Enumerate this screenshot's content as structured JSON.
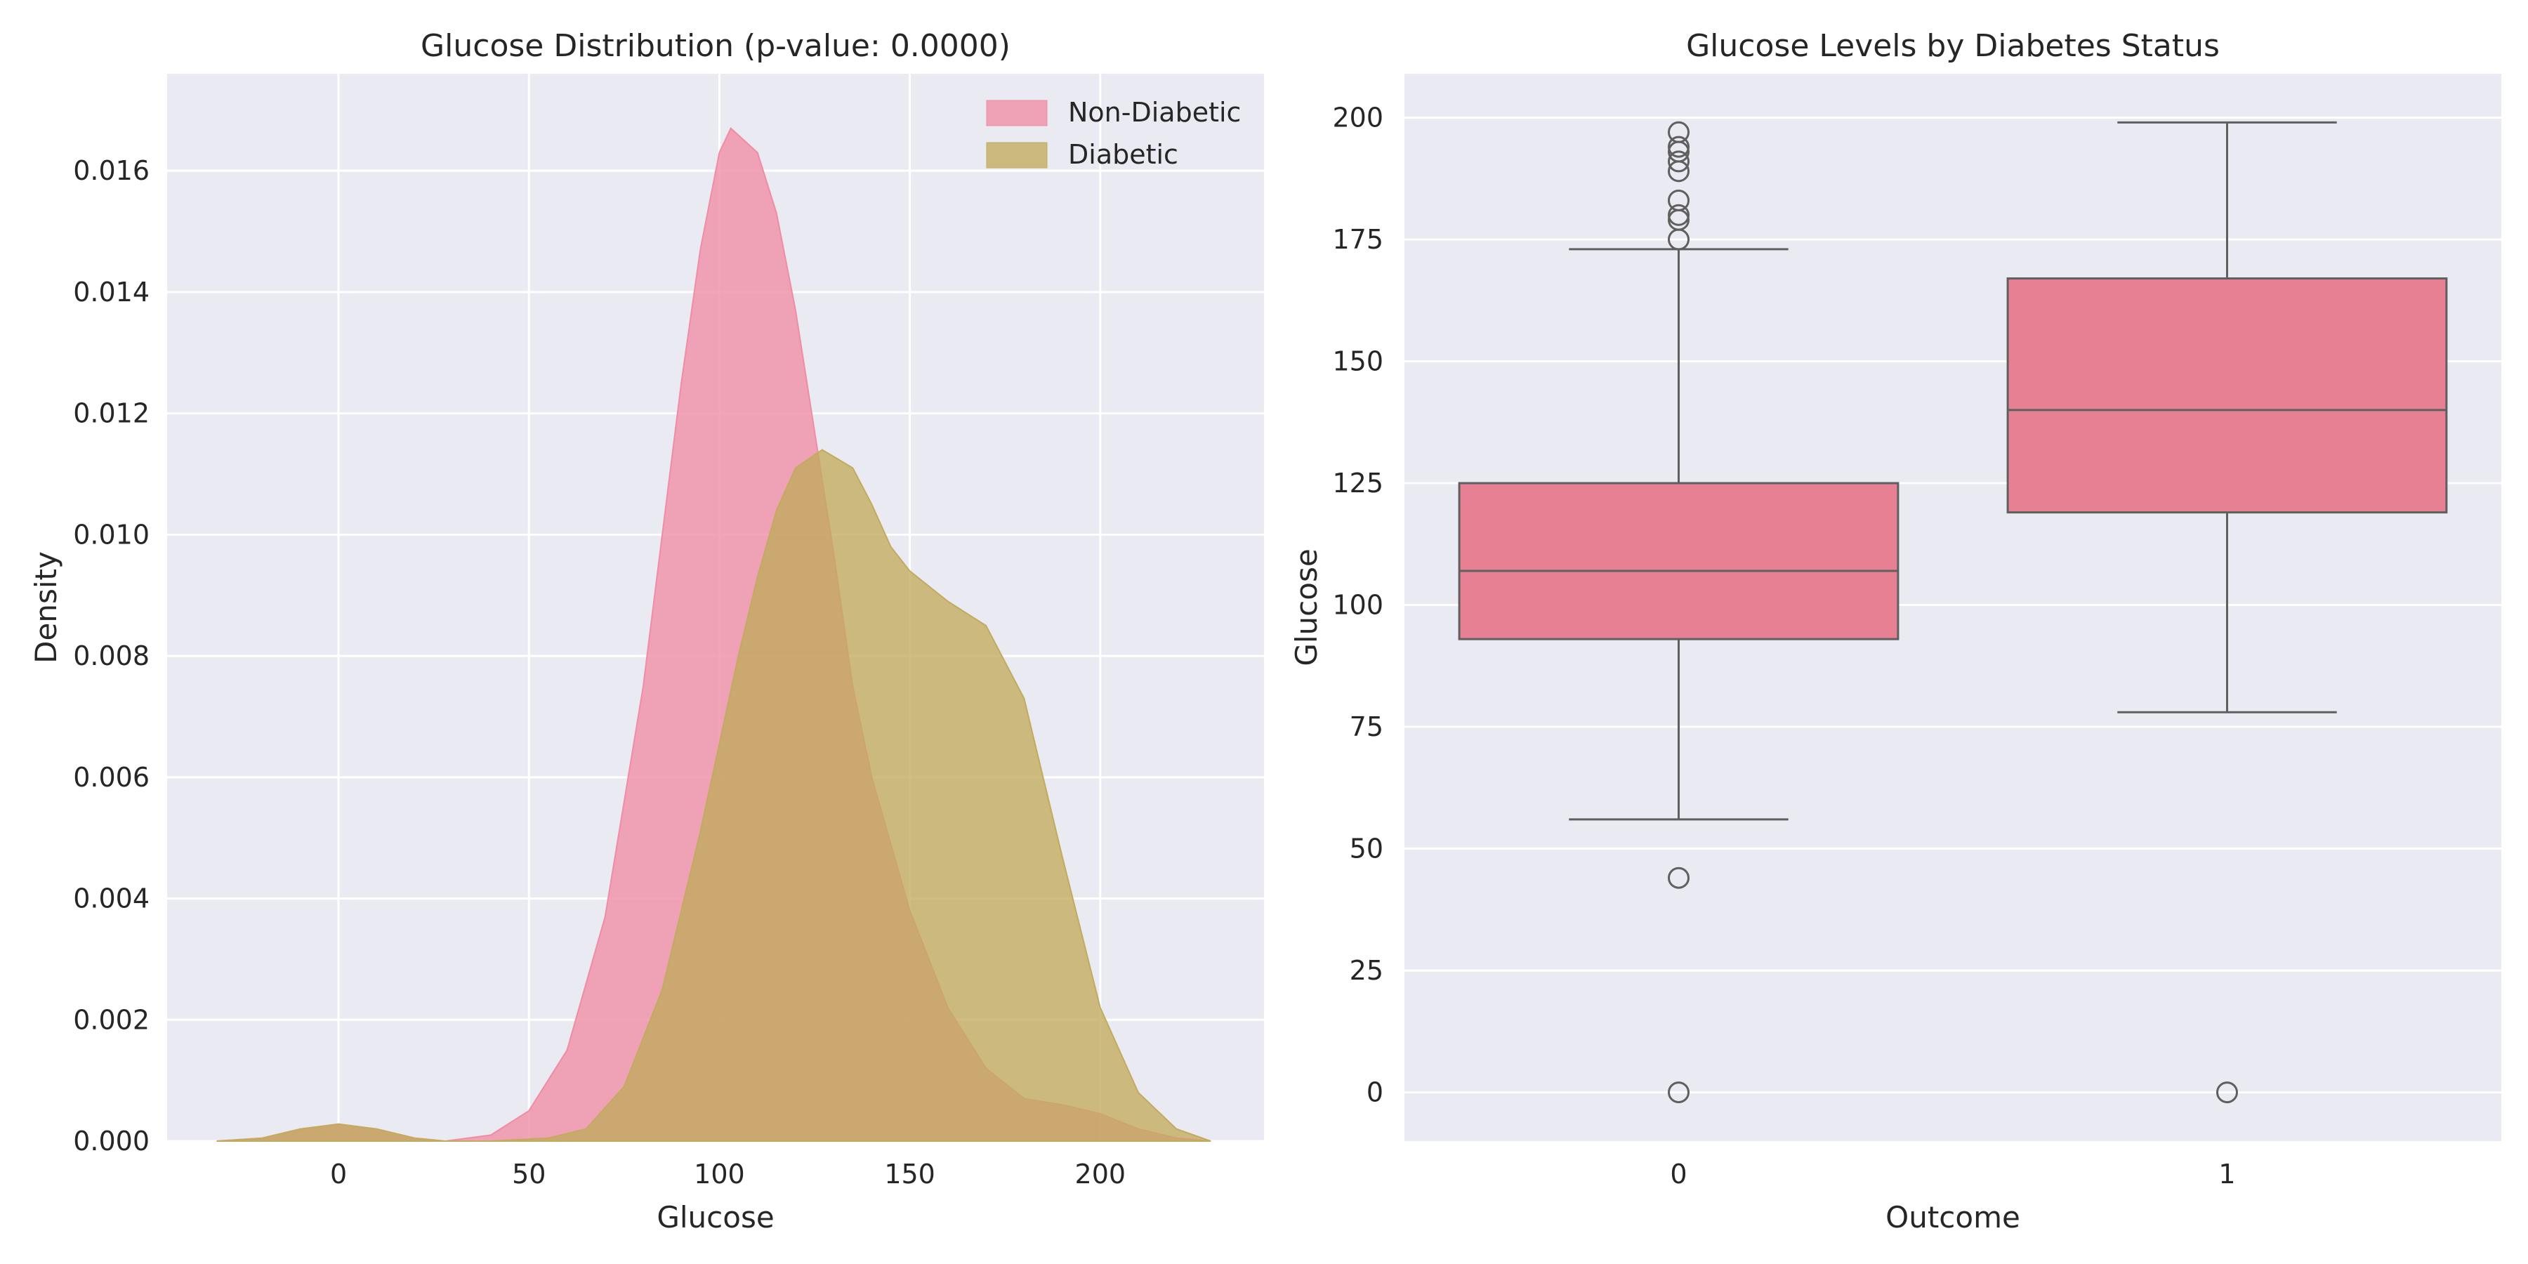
{
  "chart_data": [
    {
      "type": "area",
      "title": "Glucose Distribution (p-value: 0.0000)",
      "xlabel": "Glucose",
      "ylabel": "Density",
      "xlim": [
        -45,
        243
      ],
      "ylim": [
        0,
        0.0176
      ],
      "xticks": [
        0,
        50,
        100,
        150,
        200
      ],
      "yticks": [
        0.0,
        0.002,
        0.004,
        0.006,
        0.008,
        0.01,
        0.012,
        0.014,
        0.016
      ],
      "ytick_labels": [
        "0.000",
        "0.002",
        "0.004",
        "0.006",
        "0.008",
        "0.010",
        "0.012",
        "0.014",
        "0.016"
      ],
      "grid": true,
      "legend_position": "top-right",
      "series": [
        {
          "name": "Non-Diabetic",
          "color": "#f08ca4",
          "x": [
            -32,
            -20,
            -10,
            0,
            10,
            20,
            28,
            40,
            50,
            60,
            70,
            80,
            90,
            95,
            100,
            103,
            110,
            115,
            120,
            125,
            130,
            135,
            140,
            150,
            160,
            170,
            180,
            190,
            200,
            210,
            220,
            229
          ],
          "y": [
            0.0,
            5e-05,
            0.0002,
            0.00028,
            0.0002,
            5e-05,
            0.0,
            0.0001,
            0.0005,
            0.0015,
            0.0037,
            0.0075,
            0.0125,
            0.0147,
            0.0163,
            0.0167,
            0.0163,
            0.0153,
            0.0137,
            0.0117,
            0.0097,
            0.0075,
            0.006,
            0.0038,
            0.0022,
            0.0012,
            0.0007,
            0.0006,
            0.00045,
            0.0002,
            5e-05,
            0.0
          ]
        },
        {
          "name": "Diabetic",
          "color": "#c2ab5e",
          "x": [
            -32,
            -20,
            -10,
            0,
            10,
            20,
            28,
            40,
            55,
            65,
            75,
            85,
            95,
            105,
            110,
            115,
            120,
            127,
            135,
            140,
            145,
            150,
            160,
            170,
            180,
            190,
            200,
            210,
            220,
            229
          ],
          "y": [
            0.0,
            5e-05,
            0.0002,
            0.00028,
            0.0002,
            5e-05,
            0.0,
            0.0,
            5e-05,
            0.0002,
            0.0009,
            0.0025,
            0.0051,
            0.008,
            0.0093,
            0.0104,
            0.0111,
            0.0114,
            0.0111,
            0.0105,
            0.0098,
            0.0094,
            0.0089,
            0.0085,
            0.0073,
            0.0047,
            0.0022,
            0.0008,
            0.0002,
            0.0
          ]
        }
      ]
    },
    {
      "type": "box",
      "title": "Glucose Levels by Diabetes Status",
      "xlabel": "Outcome",
      "ylabel": "Glucose",
      "categories": [
        "0",
        "1"
      ],
      "ylim": [
        -10,
        209
      ],
      "yticks": [
        0,
        25,
        50,
        75,
        100,
        125,
        150,
        175,
        200
      ],
      "grid": true,
      "box_color": "#e88094",
      "boxes": [
        {
          "category": "0",
          "q1": 93,
          "median": 107,
          "q3": 125,
          "whisker_low": 56,
          "whisker_high": 173,
          "outliers": [
            197,
            194,
            193,
            191,
            189,
            183,
            180,
            179,
            175,
            44,
            0
          ]
        },
        {
          "category": "1",
          "q1": 119,
          "median": 140,
          "q3": 167,
          "whisker_low": 78,
          "whisker_high": 199,
          "outliers": [
            0
          ]
        }
      ]
    }
  ]
}
